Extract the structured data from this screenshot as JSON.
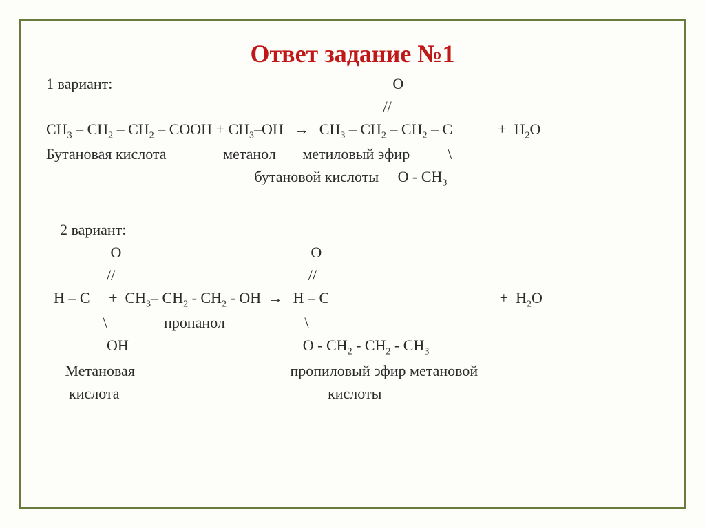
{
  "title": "Ответ задание №1",
  "variant1": {
    "label": "1 вариант:",
    "lhs_acid": "CH3 – CH2 – CH2 – COOH",
    "plus1": "+",
    "alcohol": "CH3–OH",
    "arrow": "→",
    "rhs_prefix": "CH3 – CH2 – CH2 – C",
    "double_o": "O",
    "double_slash": "//",
    "water": "+  H2O",
    "names_acid": "Бутановая кислота",
    "names_alcohol": "метанол",
    "names_ester1": "метиловый эфир",
    "backslash": "\\",
    "names_ester2": "бутановой кислоты",
    "ester_tail": "O - CH3"
  },
  "variant2": {
    "label": "2 вариант:",
    "lhs_h_c": "H – C",
    "double_o": "O",
    "double_slash": "//",
    "plus": "+",
    "alcohol": "CH3– CH2 - CH2 - OH",
    "arrow": "→",
    "rhs_h_c": "H – C",
    "water": "+  H2O",
    "backslash": "\\",
    "names_alcohol": "пропанол",
    "lhs_tail": "OH",
    "rhs_tail": "O - CH2 - CH2 - CH3",
    "names_acid": "Метановая",
    "names_ester1": "пропиловый эфир метановой",
    "names_acid2": "кислота",
    "names_ester2": "кислоты"
  },
  "colors": {
    "title": "#c01818",
    "border": "#6a7a3c",
    "text": "#2b2b2b",
    "background": "#fdfdf9"
  }
}
